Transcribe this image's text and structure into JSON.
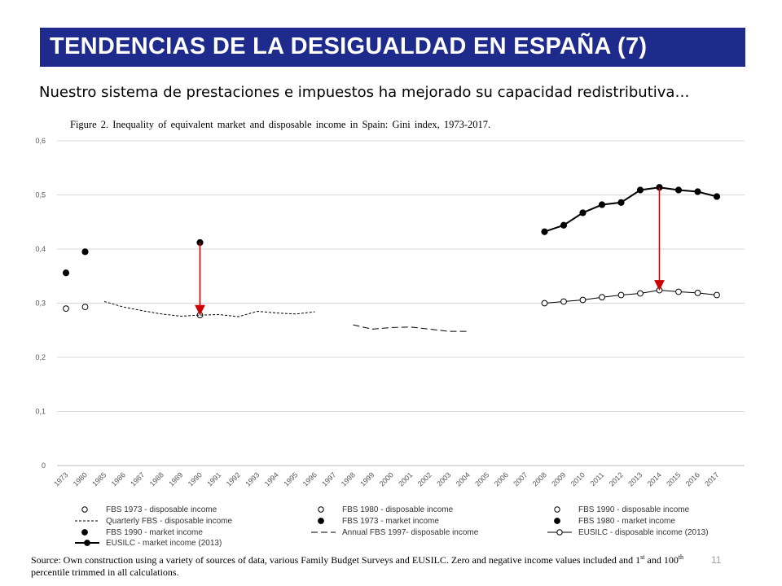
{
  "slide": {
    "title": "TENDENCIAS DE LA DESIGUALDAD EN ESPAÑA (7)",
    "subtitle": "Nuestro sistema de prestaciones e impuestos ha mejorado su capacidad redistributiva…",
    "figure_caption": "Figure 2. Inequality of equivalent market and disposable income in Spain: Gini index, 1973-2017.",
    "source_part1": "Source: Own construction using a variety of sources of data, various Family Budget Surveys and EUSILC. Zero and negative income values included and 1",
    "source_sup1": "st",
    "source_part2": " and 100",
    "source_sup2": "th",
    "source_part3": " percentile trimmed in all calculations.",
    "page_number": "11"
  },
  "colors": {
    "title_bg": "#1e2a8c",
    "arrow": "#cc0000",
    "series": "#000000",
    "grid": "#d9d9d9"
  },
  "chart_data": {
    "type": "line",
    "title": "Figure 2. Inequality of equivalent market and disposable income in Spain: Gini index, 1973-2017.",
    "xlabel": "",
    "ylabel": "",
    "categories": [
      "1973",
      "1980",
      "1985",
      "1986",
      "1987",
      "1988",
      "1989",
      "1990",
      "1991",
      "1992",
      "1993",
      "1994",
      "1995",
      "1996",
      "1997",
      "1998",
      "1999",
      "2000",
      "2001",
      "2002",
      "2003",
      "2004",
      "2005",
      "2006",
      "2007",
      "2008",
      "2009",
      "2010",
      "2011",
      "2012",
      "2013",
      "2014",
      "2015",
      "2016",
      "2017"
    ],
    "y_ticks": [
      "0",
      "0,1",
      "0,2",
      "0,3",
      "0,4",
      "0,5",
      "0,6"
    ],
    "ylim": [
      0,
      0.6
    ],
    "grid": true,
    "legend_position": "bottom",
    "series": [
      {
        "name": "FBS 1973 - disposable income",
        "style": "open-marker",
        "legend_slot": 0,
        "points": [
          {
            "x": "1973",
            "y": 0.29
          }
        ]
      },
      {
        "name": "FBS 1980 - disposable income",
        "style": "open-marker",
        "legend_slot": 1,
        "points": [
          {
            "x": "1980",
            "y": 0.293
          }
        ]
      },
      {
        "name": "FBS 1990 - disposable income",
        "style": "open-marker",
        "legend_slot": 2,
        "points": [
          {
            "x": "1990",
            "y": 0.278
          }
        ]
      },
      {
        "name": "Quarterly FBS - disposable income",
        "style": "dotted-line",
        "legend_slot": 3,
        "points": [
          {
            "x": "1985",
            "y": 0.303
          },
          {
            "x": "1986",
            "y": 0.293
          },
          {
            "x": "1987",
            "y": 0.286
          },
          {
            "x": "1988",
            "y": 0.28
          },
          {
            "x": "1989",
            "y": 0.276
          },
          {
            "x": "1990",
            "y": 0.278
          },
          {
            "x": "1991",
            "y": 0.279
          },
          {
            "x": "1992",
            "y": 0.275
          },
          {
            "x": "1993",
            "y": 0.285
          },
          {
            "x": "1994",
            "y": 0.282
          },
          {
            "x": "1995",
            "y": 0.28
          },
          {
            "x": "1996",
            "y": 0.284
          }
        ]
      },
      {
        "name": "FBS 1973 - market income",
        "style": "filled-marker",
        "legend_slot": 4,
        "points": [
          {
            "x": "1973",
            "y": 0.356
          }
        ]
      },
      {
        "name": "FBS 1980 - market income",
        "style": "filled-marker",
        "legend_slot": 5,
        "points": [
          {
            "x": "1980",
            "y": 0.395
          }
        ]
      },
      {
        "name": "FBS 1990 - market income",
        "style": "filled-marker",
        "legend_slot": 6,
        "points": [
          {
            "x": "1990",
            "y": 0.412
          }
        ]
      },
      {
        "name": "Annual FBS 1997- disposable income",
        "style": "dashed-line",
        "legend_slot": 7,
        "points": [
          {
            "x": "1998",
            "y": 0.26
          },
          {
            "x": "1999",
            "y": 0.252
          },
          {
            "x": "2000",
            "y": 0.255
          },
          {
            "x": "2001",
            "y": 0.256
          },
          {
            "x": "2002",
            "y": 0.252
          },
          {
            "x": "2003",
            "y": 0.248
          },
          {
            "x": "2004",
            "y": 0.248
          }
        ]
      },
      {
        "name": "EUSILC - disposable income (2013)",
        "style": "line-open",
        "legend_slot": 8,
        "points": [
          {
            "x": "2008",
            "y": 0.3
          },
          {
            "x": "2009",
            "y": 0.303
          },
          {
            "x": "2010",
            "y": 0.306
          },
          {
            "x": "2011",
            "y": 0.311
          },
          {
            "x": "2012",
            "y": 0.315
          },
          {
            "x": "2013",
            "y": 0.318
          },
          {
            "x": "2014",
            "y": 0.324
          },
          {
            "x": "2015",
            "y": 0.321
          },
          {
            "x": "2016",
            "y": 0.319
          },
          {
            "x": "2017",
            "y": 0.315
          }
        ]
      },
      {
        "name": "EUSILC - market income (2013)",
        "style": "line-filled",
        "legend_slot": 9,
        "points": [
          {
            "x": "2008",
            "y": 0.432
          },
          {
            "x": "2009",
            "y": 0.444
          },
          {
            "x": "2010",
            "y": 0.467
          },
          {
            "x": "2011",
            "y": 0.482
          },
          {
            "x": "2012",
            "y": 0.486
          },
          {
            "x": "2013",
            "y": 0.509
          },
          {
            "x": "2014",
            "y": 0.514
          },
          {
            "x": "2015",
            "y": 0.509
          },
          {
            "x": "2016",
            "y": 0.506
          },
          {
            "x": "2017",
            "y": 0.497
          }
        ]
      }
    ],
    "annotations": [
      {
        "type": "arrow",
        "x": "1990",
        "from": 0.412,
        "to": 0.278
      },
      {
        "type": "arrow",
        "x": "2014",
        "from": 0.514,
        "to": 0.324
      }
    ]
  }
}
